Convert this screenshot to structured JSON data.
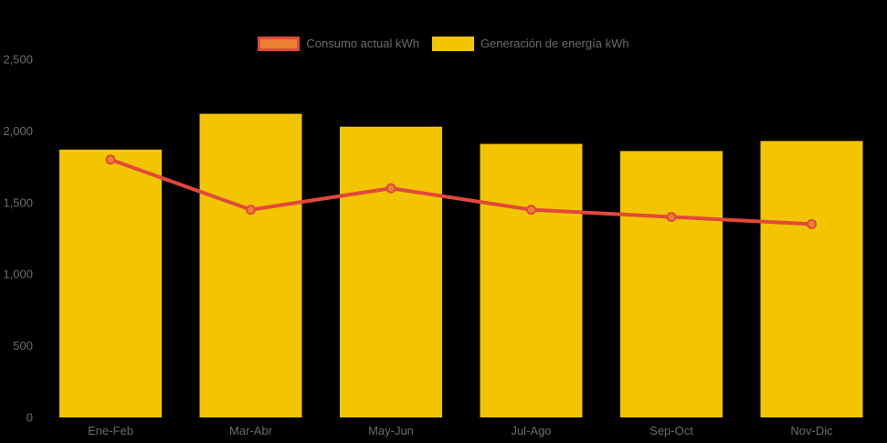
{
  "chart_data": {
    "type": "bar",
    "title": "",
    "categories": [
      "Ene-Feb",
      "Mar-Abr",
      "May-Jun",
      "Jul-Ago",
      "Sep-Oct",
      "Nov-Dic"
    ],
    "series": [
      {
        "name": "Consumo actual kWh",
        "type": "line",
        "values": [
          1800,
          1450,
          1600,
          1450,
          1400,
          1350
        ],
        "line_color": "#E2483B",
        "marker_fill": "#EC8030",
        "marker_stroke": "#E2483B"
      },
      {
        "name": "Generación de energía kWh",
        "type": "bar",
        "values": [
          1870,
          2120,
          2030,
          1910,
          1860,
          1930
        ],
        "color": "#F2C500"
      }
    ],
    "xlabel": "",
    "ylabel": "",
    "ylim": [
      0,
      2500
    ],
    "ytick_values": [
      0,
      500,
      1000,
      1500,
      2000,
      2500
    ],
    "ytick_labels": [
      "0",
      "500",
      "1,000",
      "1,500",
      "2,000",
      "2,500"
    ],
    "grid": false,
    "legend_position": "top-center",
    "background_color": "#000000",
    "text_color": "#6B6B6B"
  }
}
